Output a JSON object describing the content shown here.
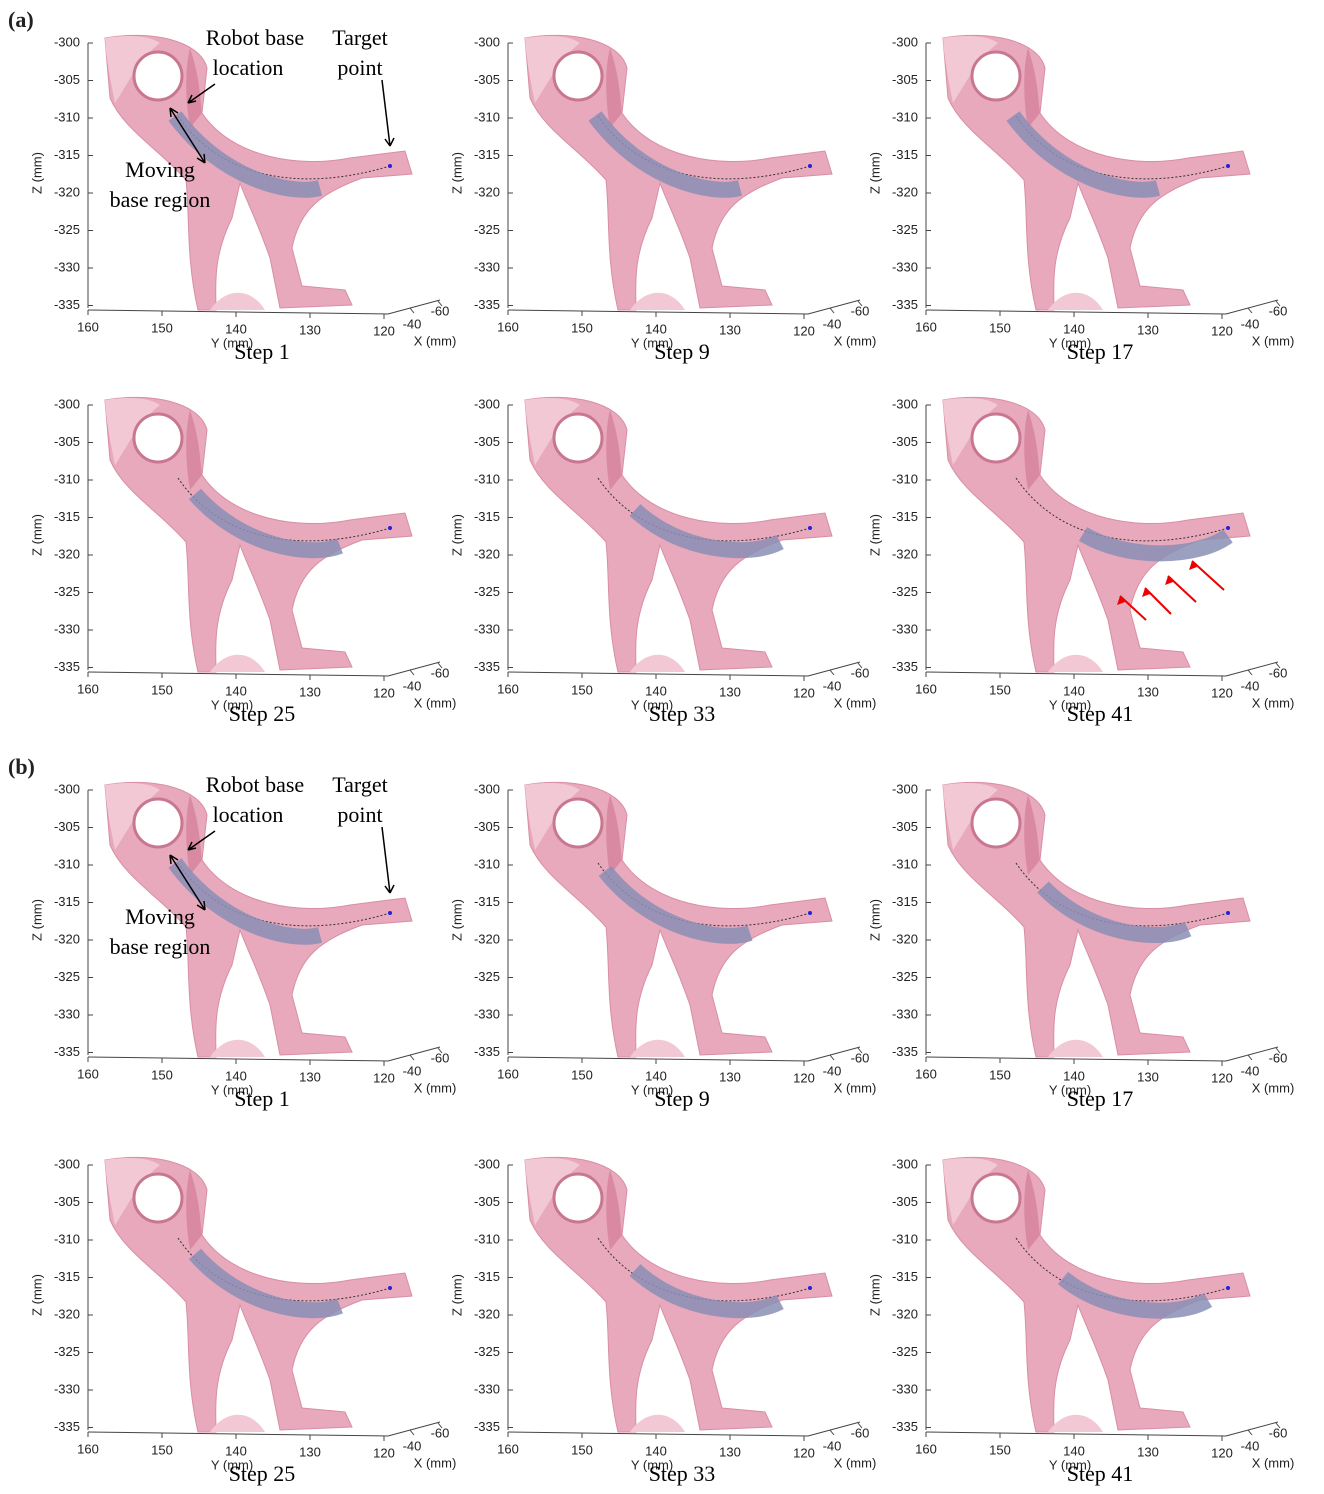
{
  "sections": [
    {
      "label": "(a)",
      "annotations": {
        "robot_base": [
          "Robot base",
          "location"
        ],
        "target": [
          "Target",
          "point"
        ],
        "moving_base": [
          "Moving",
          "base region"
        ]
      },
      "panels": [
        {
          "caption": "Step 1"
        },
        {
          "caption": "Step 9"
        },
        {
          "caption": "Step 17"
        },
        {
          "caption": "Step 25"
        },
        {
          "caption": "Step 33"
        },
        {
          "caption": "Step 41"
        }
      ]
    },
    {
      "label": "(b)",
      "annotations": {
        "robot_base": [
          "Robot base",
          "location"
        ],
        "target": [
          "Target",
          "point"
        ],
        "moving_base": [
          "Moving",
          "base region"
        ]
      },
      "panels": [
        {
          "caption": "Step 1"
        },
        {
          "caption": "Step 9"
        },
        {
          "caption": "Step 17"
        },
        {
          "caption": "Step 25"
        },
        {
          "caption": "Step 33"
        },
        {
          "caption": "Step 41"
        }
      ]
    }
  ],
  "axes": {
    "z_ticks": [
      -300,
      -305,
      -310,
      -315,
      -320,
      -325,
      -330,
      -335
    ],
    "y_ticks": [
      160,
      150,
      140,
      130,
      120
    ],
    "x_ticks": [
      -40,
      -60
    ],
    "z_label": "Z (mm)",
    "y_label": "Y (mm)",
    "x_label": "X (mm)"
  }
}
